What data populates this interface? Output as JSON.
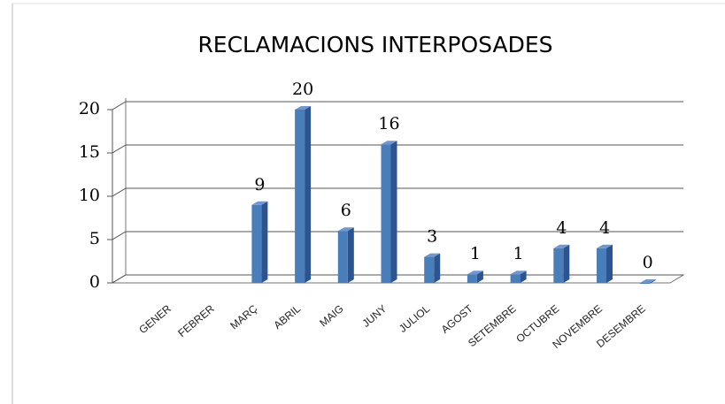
{
  "chart_data": {
    "type": "bar",
    "title": "RECLAMACIONS INTERPOSADES",
    "categories": [
      "GENER",
      "FEBRER",
      "MARÇ",
      "ABRIL",
      "MAIG",
      "JUNY",
      "JULIOL",
      "AGOST",
      "SETEMBRE",
      "OCTUBRE",
      "NOVEMBRE",
      "DESEMBRE"
    ],
    "values": [
      null,
      null,
      9,
      20,
      6,
      16,
      3,
      1,
      1,
      4,
      4,
      0
    ],
    "color": "#4a7ebb",
    "ylim": [
      0,
      20
    ],
    "yticks": [
      0,
      5,
      10,
      15,
      20
    ],
    "grid": true
  }
}
